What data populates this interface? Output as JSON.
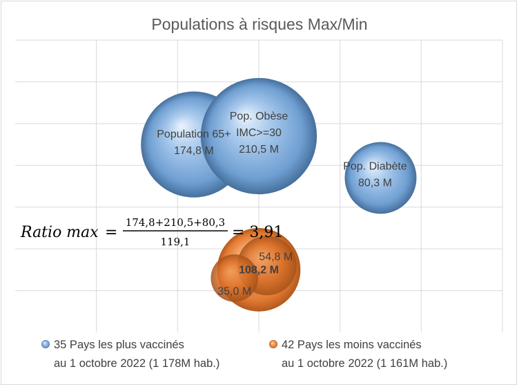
{
  "chart_data": {
    "type": "bubble",
    "title": "Populations à risques Max/Min",
    "grid": true,
    "xlim": [
      0,
      6
    ],
    "ylim": [
      0,
      7
    ],
    "series": [
      {
        "name": "35 Pays les plus vaccinés",
        "name_line2": "au 1 octobre 2022 (1 178M hab.)",
        "color": "#5b9bd5",
        "points": [
          {
            "id": "pop65",
            "x": 2.2,
            "y": 4.5,
            "size": 174.8,
            "label": [
              "Population 65+",
              "174,8 M"
            ]
          },
          {
            "id": "obese",
            "x": 3.0,
            "y": 4.7,
            "size": 210.5,
            "label": [
              "Pop. Obèse",
              "IMC>=30",
              "210,5 M"
            ]
          },
          {
            "id": "diabete",
            "x": 4.5,
            "y": 3.7,
            "size": 80.3,
            "label": [
              "Pop. Diabète",
              "80,3 M"
            ]
          }
        ]
      },
      {
        "name": "42 Pays les moins vaccinés",
        "name_line2": "au 1 octobre 2022 (1 161M hab.)",
        "color": "#ed7d31",
        "points": [
          {
            "id": "min-total",
            "x": 3.0,
            "y": 1.5,
            "size": 108.2,
            "label": [
              "108,2 M"
            ]
          },
          {
            "id": "min-548",
            "x": 3.1,
            "y": 1.6,
            "size": 54.8,
            "label": [
              "54,8 M"
            ]
          },
          {
            "id": "min-350",
            "x": 2.7,
            "y": 1.3,
            "size": 35.0,
            "label": [
              "35,0 M"
            ]
          }
        ]
      }
    ],
    "annotation": {
      "lhs": "Ratio max",
      "equals": "=",
      "numerator": "174,8+210,5+80,3",
      "denominator": "119,1",
      "result": "= 3,91"
    },
    "legend_position": "bottom"
  }
}
